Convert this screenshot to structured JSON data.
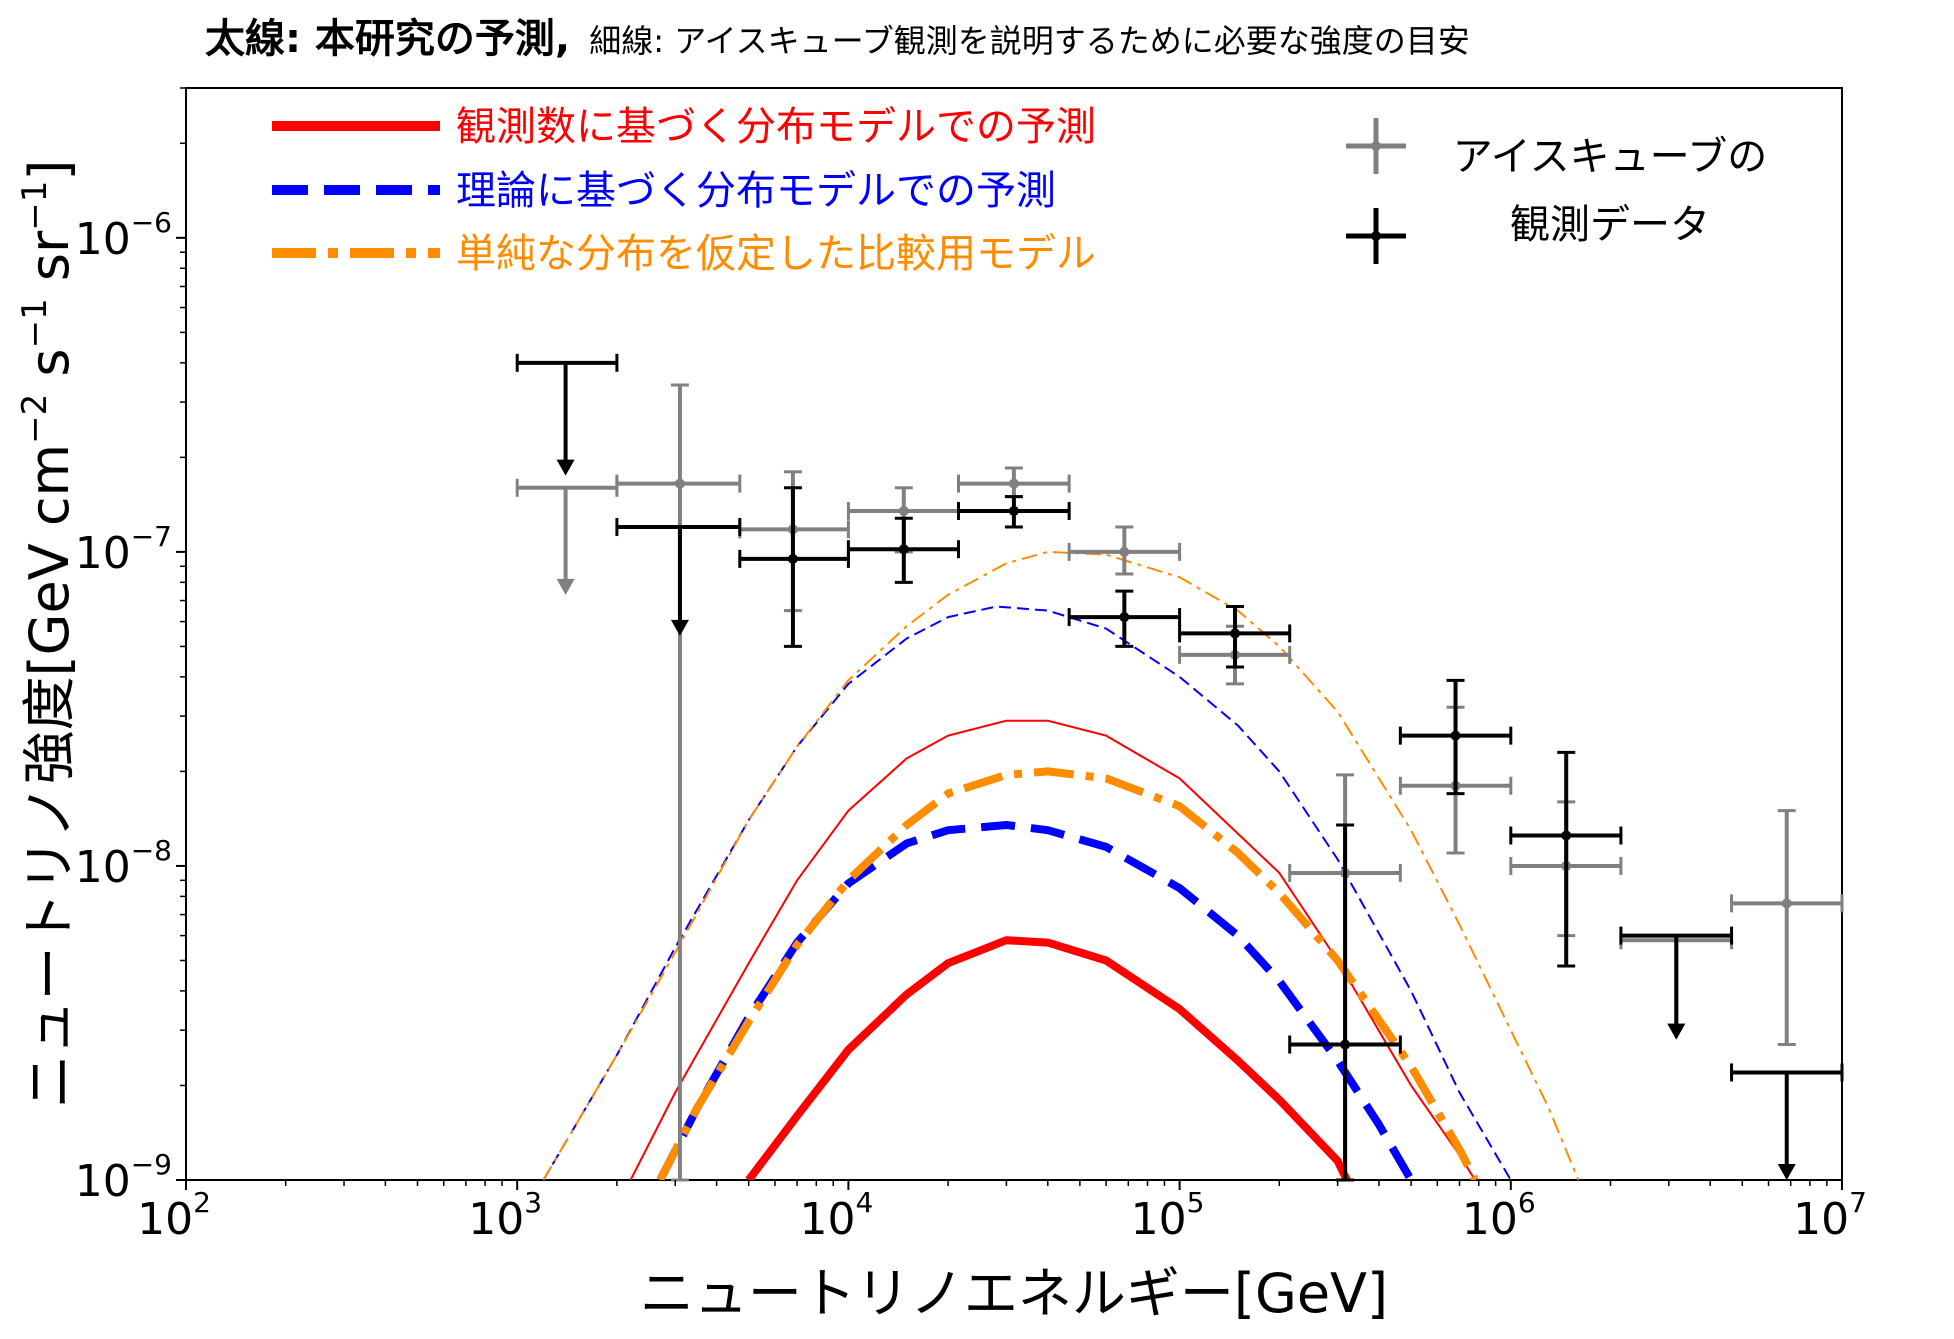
{
  "title": {
    "bold": "太線: 本研究の予測,",
    "normal": "細線: アイスキューブ観測を説明するために必要な強度の目安"
  },
  "chart_data": {
    "type": "line",
    "xscale": "log",
    "yscale": "log",
    "xlim": [
      100,
      10000000
    ],
    "ylim": [
      1e-09,
      3e-06
    ],
    "xlabel": "ニュートリノエネルギー[GeV]",
    "ylabel": {
      "main": "ニュートリノ強度",
      "unit": "[GeV cm",
      "unit_parts": [
        "[GeV cm",
        "−2",
        " s",
        "−1",
        " sr",
        "−1",
        "]"
      ]
    },
    "xticks": [
      {
        "value": 100,
        "base": "10",
        "exp": "2"
      },
      {
        "value": 1000,
        "base": "10",
        "exp": "3"
      },
      {
        "value": 10000,
        "base": "10",
        "exp": "4"
      },
      {
        "value": 100000,
        "base": "10",
        "exp": "5"
      },
      {
        "value": 1000000,
        "base": "10",
        "exp": "6"
      },
      {
        "value": 10000000,
        "base": "10",
        "exp": "7"
      }
    ],
    "yticks": [
      {
        "value": 1e-09,
        "base": "10",
        "exp": "−9"
      },
      {
        "value": 1e-08,
        "base": "10",
        "exp": "−8"
      },
      {
        "value": 1e-07,
        "base": "10",
        "exp": "−7"
      },
      {
        "value": 1e-06,
        "base": "10",
        "exp": "−6"
      }
    ],
    "legend_left": {
      "position": "top-left",
      "entries": [
        {
          "label": "観測数に基づく分布モデルでの予測",
          "color": "#ff0000",
          "style": "solid"
        },
        {
          "label": "理論に基づく分布モデルでの予測",
          "color": "#0000ff",
          "style": "dashed"
        },
        {
          "label": "単純な分布を仮定した比較用モデル",
          "color": "#ff8c00",
          "style": "dashdot"
        }
      ]
    },
    "legend_right": {
      "position": "top-right",
      "entries": [
        {
          "label": "アイスキューブの",
          "color": "#808080"
        },
        {
          "label": "観測データ",
          "color": "#000000"
        }
      ]
    },
    "series": [
      {
        "color": "#ff0000",
        "style": "solid",
        "width": "thick",
        "x": [
          5000,
          7000,
          10000,
          15000,
          20000,
          30000,
          40000,
          60000,
          100000,
          150000,
          200000,
          300000,
          320000
        ],
        "y": [
          1e-09,
          1.6e-09,
          2.6e-09,
          3.9e-09,
          4.9e-09,
          5.8e-09,
          5.7e-09,
          5e-09,
          3.5e-09,
          2.4e-09,
          1.8e-09,
          1.15e-09,
          1e-09
        ]
      },
      {
        "color": "#ff0000",
        "style": "solid",
        "width": "thin",
        "x": [
          2200,
          3000,
          5000,
          7000,
          10000,
          15000,
          20000,
          30000,
          40000,
          60000,
          100000,
          200000,
          300000,
          500000,
          700000,
          780000
        ],
        "y": [
          1e-09,
          1.9e-09,
          4.9e-09,
          9e-09,
          1.5e-08,
          2.2e-08,
          2.6e-08,
          2.9e-08,
          2.9e-08,
          2.6e-08,
          1.9e-08,
          9.5e-09,
          5e-09,
          2e-09,
          1.2e-09,
          1e-09
        ]
      },
      {
        "color": "#0000ff",
        "style": "dashed",
        "width": "thick",
        "x": [
          2700,
          3500,
          5000,
          7000,
          10000,
          15000,
          20000,
          30000,
          40000,
          60000,
          100000,
          150000,
          200000,
          300000,
          400000,
          500000
        ],
        "y": [
          1e-09,
          1.7e-09,
          3.3e-09,
          5.7e-09,
          8.8e-09,
          1.18e-08,
          1.3e-08,
          1.35e-08,
          1.3e-08,
          1.15e-08,
          8.5e-09,
          6e-09,
          4.3e-09,
          2.4e-09,
          1.5e-09,
          1e-09
        ]
      },
      {
        "color": "#0000ff",
        "style": "dashed",
        "width": "thin",
        "x": [
          1200,
          2000,
          3000,
          5000,
          7000,
          10000,
          15000,
          20000,
          28000,
          40000,
          60000,
          100000,
          150000,
          200000,
          300000,
          500000,
          700000,
          1000000
        ],
        "y": [
          1e-09,
          2.5e-09,
          5.5e-09,
          1.4e-08,
          2.4e-08,
          3.8e-08,
          5.3e-08,
          6.2e-08,
          6.7e-08,
          6.5e-08,
          5.7e-08,
          4e-08,
          2.8e-08,
          2e-08,
          1.05e-08,
          4e-09,
          1.9e-09,
          1e-09
        ]
      },
      {
        "color": "#ff8c00",
        "style": "dashdot",
        "width": "thick",
        "x": [
          2700,
          3500,
          5000,
          7000,
          10000,
          15000,
          20000,
          30000,
          40000,
          60000,
          100000,
          150000,
          200000,
          300000,
          500000,
          700000,
          780000
        ],
        "y": [
          1e-09,
          1.7e-09,
          3.2e-09,
          5.6e-09,
          9e-09,
          1.35e-08,
          1.7e-08,
          1.95e-08,
          2e-08,
          1.9e-08,
          1.55e-08,
          1.1e-08,
          8.2e-09,
          5e-09,
          2.3e-09,
          1.25e-09,
          1e-09
        ]
      },
      {
        "color": "#ff8c00",
        "style": "dashdot",
        "width": "thin",
        "x": [
          1200,
          2000,
          3000,
          5000,
          7000,
          10000,
          15000,
          20000,
          30000,
          40000,
          60000,
          100000,
          150000,
          200000,
          300000,
          500000,
          700000,
          1000000,
          1300000,
          1600000
        ],
        "y": [
          1e-09,
          2.5e-09,
          5.3e-09,
          1.4e-08,
          2.4e-08,
          3.9e-08,
          5.8e-08,
          7.3e-08,
          9.2e-08,
          1e-07,
          9.8e-08,
          8.3e-08,
          6.5e-08,
          5e-08,
          3.1e-08,
          1.3e-08,
          6.5e-09,
          3e-09,
          1.7e-09,
          1e-09
        ]
      }
    ],
    "data_points": [
      {
        "color": "#808080",
        "x": 1400,
        "xerr": [
          1000,
          2000
        ],
        "y": 1.6e-07,
        "yerr": null,
        "upper_limit": true,
        "arrow_to": 7.3e-08
      },
      {
        "color": "#808080",
        "x": 3100,
        "xerr": [
          2000,
          4700
        ],
        "y": 1.65e-07,
        "yerr": [
          1e-09,
          3.4e-07
        ],
        "upper_limit": false
      },
      {
        "color": "#808080",
        "x": 6800,
        "xerr": [
          4700,
          10000
        ],
        "y": 1.18e-07,
        "yerr": [
          6.5e-08,
          1.8e-07
        ],
        "upper_limit": false
      },
      {
        "color": "#808080",
        "x": 14700,
        "xerr": [
          10000,
          21500
        ],
        "y": 1.35e-07,
        "yerr": [
          1e-07,
          1.6e-07
        ],
        "upper_limit": false
      },
      {
        "color": "#808080",
        "x": 31600,
        "xerr": [
          21500,
          46400
        ],
        "y": 1.65e-07,
        "yerr": [
          1.5e-07,
          1.85e-07
        ],
        "upper_limit": false
      },
      {
        "color": "#808080",
        "x": 68100,
        "xerr": [
          46400,
          100000
        ],
        "y": 1e-07,
        "yerr": [
          8.5e-08,
          1.2e-07
        ],
        "upper_limit": false
      },
      {
        "color": "#808080",
        "x": 147000,
        "xerr": [
          100000,
          215000
        ],
        "y": 4.7e-08,
        "yerr": [
          3.8e-08,
          5.8e-08
        ],
        "upper_limit": false
      },
      {
        "color": "#808080",
        "x": 316000,
        "xerr": [
          215000,
          464000
        ],
        "y": 9.5e-09,
        "yerr": [
          1e-09,
          1.95e-08
        ],
        "upper_limit": false
      },
      {
        "color": "#808080",
        "x": 681000,
        "xerr": [
          464000,
          1000000
        ],
        "y": 1.8e-08,
        "yerr": [
          1.1e-08,
          3.2e-08
        ],
        "upper_limit": false
      },
      {
        "color": "#808080",
        "x": 1470000,
        "xerr": [
          1000000,
          2150000
        ],
        "y": 1e-08,
        "yerr": [
          6e-09,
          1.6e-08
        ],
        "upper_limit": false
      },
      {
        "color": "#808080",
        "x": 3160000,
        "xerr": [
          2150000,
          4640000
        ],
        "y": 5.8e-09,
        "yerr": null,
        "upper_limit": true,
        "arrow_to": 2.8e-09
      },
      {
        "color": "#808080",
        "x": 6810000,
        "xerr": [
          4640000,
          10000000
        ],
        "y": 7.6e-09,
        "yerr": [
          2.7e-09,
          1.5e-08
        ],
        "upper_limit": false
      },
      {
        "color": "#000000",
        "x": 1400,
        "xerr": [
          1000,
          2000
        ],
        "y": 4e-07,
        "yerr": null,
        "upper_limit": true,
        "arrow_to": 1.75e-07
      },
      {
        "color": "#000000",
        "x": 3100,
        "xerr": [
          2000,
          4700
        ],
        "y": 1.2e-07,
        "yerr": null,
        "upper_limit": true,
        "arrow_to": 5.4e-08
      },
      {
        "color": "#000000",
        "x": 6800,
        "xerr": [
          4700,
          10000
        ],
        "y": 9.5e-08,
        "yerr": [
          5e-08,
          1.6e-07
        ],
        "upper_limit": false
      },
      {
        "color": "#000000",
        "x": 14700,
        "xerr": [
          10000,
          21500
        ],
        "y": 1.02e-07,
        "yerr": [
          8e-08,
          1.28e-07
        ],
        "upper_limit": false
      },
      {
        "color": "#000000",
        "x": 31600,
        "xerr": [
          21500,
          46400
        ],
        "y": 1.35e-07,
        "yerr": [
          1.2e-07,
          1.5e-07
        ],
        "upper_limit": false
      },
      {
        "color": "#000000",
        "x": 68100,
        "xerr": [
          46400,
          100000
        ],
        "y": 6.2e-08,
        "yerr": [
          5e-08,
          7.5e-08
        ],
        "upper_limit": false
      },
      {
        "color": "#000000",
        "x": 147000,
        "xerr": [
          100000,
          215000
        ],
        "y": 5.5e-08,
        "yerr": [
          4.3e-08,
          6.7e-08
        ],
        "upper_limit": false
      },
      {
        "color": "#000000",
        "x": 316000,
        "xerr": [
          215000,
          464000
        ],
        "y": 2.7e-09,
        "yerr": [
          1e-09,
          1.35e-08
        ],
        "upper_limit": false
      },
      {
        "color": "#000000",
        "x": 681000,
        "xerr": [
          464000,
          1000000
        ],
        "y": 2.6e-08,
        "yerr": [
          1.7e-08,
          3.9e-08
        ],
        "upper_limit": false
      },
      {
        "color": "#000000",
        "x": 1470000,
        "xerr": [
          1000000,
          2150000
        ],
        "y": 1.25e-08,
        "yerr": [
          4.8e-09,
          2.3e-08
        ],
        "upper_limit": false
      },
      {
        "color": "#000000",
        "x": 3160000,
        "xerr": [
          2150000,
          4640000
        ],
        "y": 6e-09,
        "yerr": null,
        "upper_limit": true,
        "arrow_to": 2.8e-09
      },
      {
        "color": "#000000",
        "x": 6810000,
        "xerr": [
          4640000,
          10000000
        ],
        "y": 2.2e-09,
        "yerr": null,
        "upper_limit": true,
        "arrow_to": 1e-09
      }
    ]
  }
}
